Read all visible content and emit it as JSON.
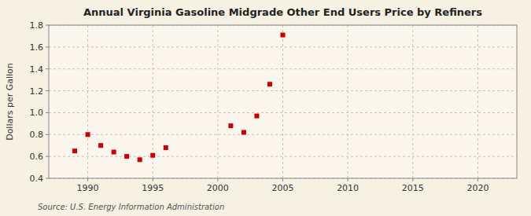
{
  "chart_data": {
    "type": "scatter",
    "title": "Annual Virginia Gasoline Midgrade Other End Users Price by Refiners",
    "y_label": "Dollars per Gallon",
    "annotations": [
      "Source: U.S. Energy Information Administration"
    ],
    "x": [
      1989,
      1990,
      1991,
      1992,
      1993,
      1994,
      1995,
      1996,
      2001,
      2002,
      2003,
      2004,
      2005
    ],
    "values": [
      0.65,
      0.8,
      0.7,
      0.64,
      0.6,
      0.57,
      0.61,
      0.68,
      0.88,
      0.82,
      0.97,
      1.26,
      1.71
    ],
    "color": "#cc0000",
    "marker": "square",
    "xlim": [
      1987,
      2023
    ],
    "ylim": [
      0.4,
      1.8
    ],
    "xticks": [
      1990,
      1995,
      2000,
      2005,
      2010,
      2015,
      2020
    ],
    "yticks": [
      0.4,
      0.6,
      0.8,
      {
        "value": 1.0,
        "label": "1.0"
      },
      1.2,
      1.4,
      1.6,
      1.8
    ],
    "grid": true
  }
}
